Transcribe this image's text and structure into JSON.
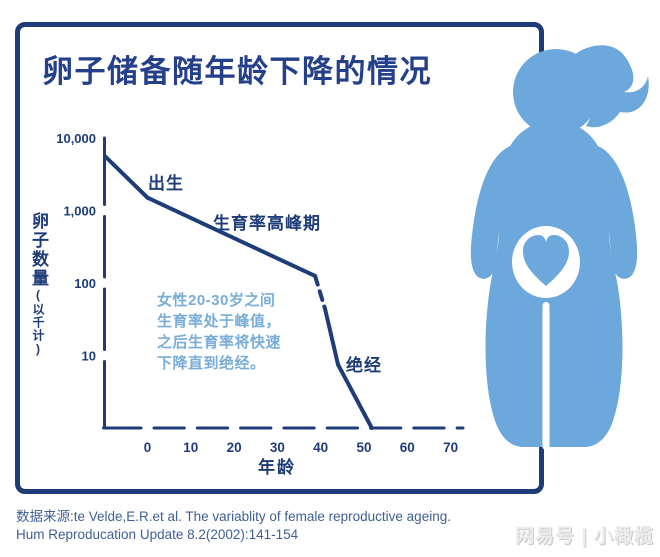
{
  "title": "卵子储备随年龄下降的情况",
  "colors": {
    "navy": "#1e3c78",
    "title_navy": "#24408a",
    "light_blue_text": "#79add9",
    "source_text": "#3f5f94",
    "figure_blue": "#6da8dc"
  },
  "chart_data": {
    "type": "line",
    "title": "卵子储备随年龄下降的情况",
    "xlabel": "年龄",
    "ylabel": "卵子数量(以千计)",
    "ylabel_main": "卵子数量",
    "ylabel_sub": "(以千计)",
    "y_scale": "log",
    "xlim": [
      -12,
      73
    ],
    "ylim": [
      1,
      10000
    ],
    "grid": false,
    "x_ticks": [
      0,
      10,
      20,
      30,
      40,
      50,
      60,
      70
    ],
    "y_ticks": [
      {
        "label": "10,000",
        "value": 10000
      },
      {
        "label": "1,000",
        "value": 1000
      },
      {
        "label": "100",
        "value": 100
      },
      {
        "label": "10",
        "value": 10
      }
    ],
    "points": [
      {
        "age": -9.8,
        "value": 5600
      },
      {
        "age": 0,
        "value": 1500
      },
      {
        "age": 38.7,
        "value": 125,
        "dashed_to_next": true
      },
      {
        "age": 41,
        "value": 44
      },
      {
        "age": 44,
        "value": 7.5
      },
      {
        "age": 51.8,
        "value": 1
      }
    ],
    "annotations": {
      "birth": "出生",
      "peak": "生育率高峰期",
      "menopause": "绝经",
      "note": "女性20-30岁之间\n生育率处于峰值，\n之后生育率将快速\n下降直到绝经。"
    }
  },
  "figure": {
    "description": "pregnant-woman-silhouette-with-heart-in-belly"
  },
  "source": {
    "line1": "数据来源:te Velde,E.R.et al. The variablity of female reproductive ageing.",
    "line2": "Hum Reproducation Update 8.2(2002):141-154"
  },
  "watermark": "网易号 | 小橄榄"
}
